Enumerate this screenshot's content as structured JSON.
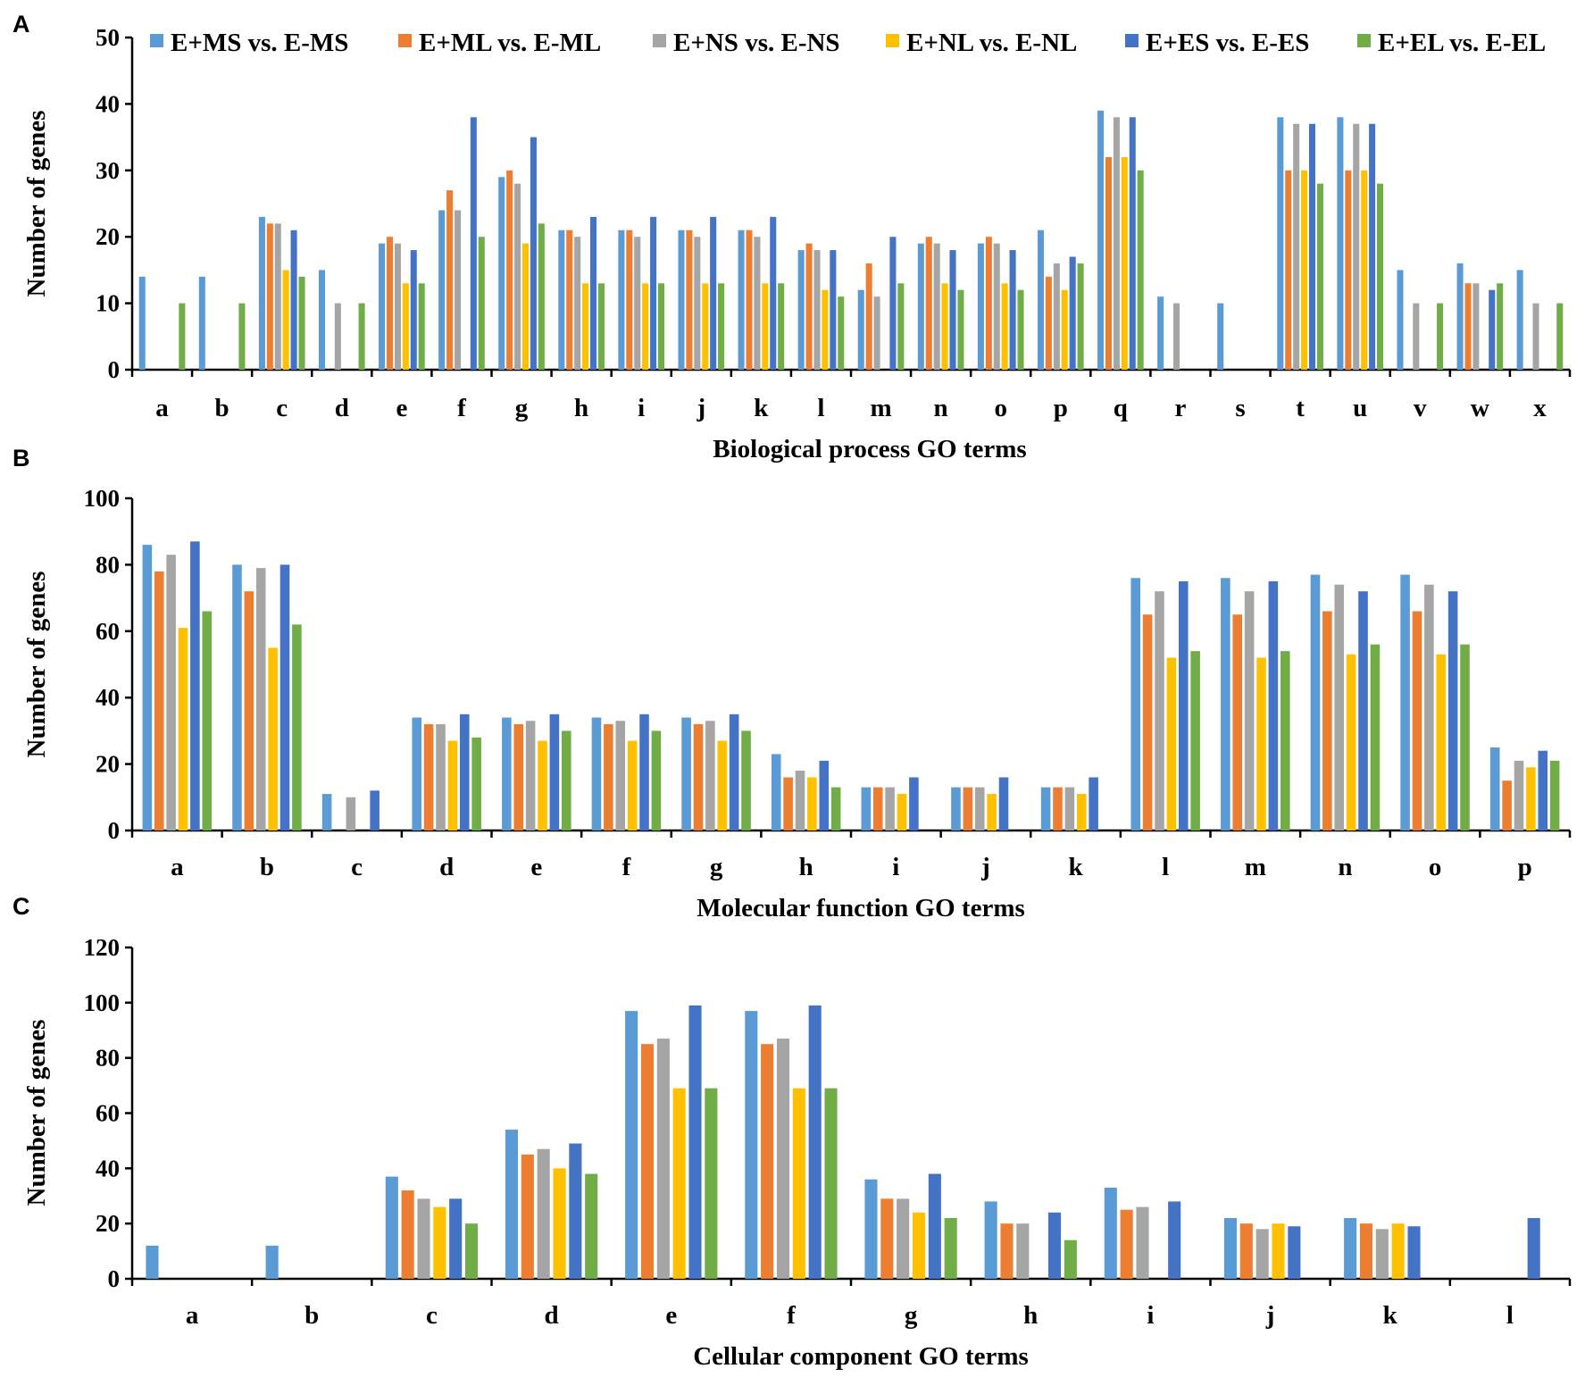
{
  "legend": [
    {
      "name": "E+MS vs. E-MS",
      "color": "#5B9BD5"
    },
    {
      "name": "E+ML vs. E-ML",
      "color": "#ED7D31"
    },
    {
      "name": "E+NS vs. E-NS",
      "color": "#A5A5A5"
    },
    {
      "name": "E+NL vs. E-NL",
      "color": "#FFC000"
    },
    {
      "name": "E+ES vs. E-ES",
      "color": "#4472C4"
    },
    {
      "name": "E+EL vs. E-EL",
      "color": "#70AD47"
    }
  ],
  "chart_data": [
    {
      "type": "bar",
      "panel": "A",
      "xlabel": "Biological process GO terms",
      "ylabel": "Number of genes",
      "ylim": [
        0,
        50
      ],
      "yticks": [
        0,
        10,
        20,
        30,
        40,
        50
      ],
      "categories": [
        "a",
        "b",
        "c",
        "d",
        "e",
        "f",
        "g",
        "h",
        "i",
        "j",
        "k",
        "l",
        "m",
        "n",
        "o",
        "p",
        "q",
        "r",
        "s",
        "t",
        "u",
        "v",
        "w",
        "x"
      ],
      "series": [
        {
          "name": "E+MS vs. E-MS",
          "values": [
            14,
            14,
            23,
            15,
            19,
            24,
            29,
            21,
            21,
            21,
            21,
            18,
            12,
            19,
            19,
            21,
            39,
            11,
            10,
            38,
            38,
            15,
            16,
            15
          ]
        },
        {
          "name": "E+ML vs. E-ML",
          "values": [
            0,
            0,
            22,
            0,
            20,
            27,
            30,
            21,
            21,
            21,
            21,
            19,
            16,
            20,
            20,
            14,
            32,
            0,
            0,
            30,
            30,
            0,
            13,
            0
          ]
        },
        {
          "name": "E+NS vs. E-NS",
          "values": [
            0,
            0,
            22,
            10,
            19,
            24,
            28,
            20,
            20,
            20,
            20,
            18,
            11,
            19,
            19,
            16,
            38,
            10,
            0,
            37,
            37,
            10,
            13,
            10
          ]
        },
        {
          "name": "E+NL vs. E-NL",
          "values": [
            0,
            0,
            15,
            0,
            13,
            0,
            19,
            13,
            13,
            13,
            13,
            12,
            0,
            13,
            13,
            12,
            32,
            0,
            0,
            30,
            30,
            0,
            0,
            0
          ]
        },
        {
          "name": "E+ES vs. E-ES",
          "values": [
            0,
            0,
            21,
            0,
            18,
            38,
            35,
            23,
            23,
            23,
            23,
            18,
            20,
            18,
            18,
            17,
            38,
            0,
            0,
            37,
            37,
            0,
            12,
            0
          ]
        },
        {
          "name": "E+EL vs. E-EL",
          "values": [
            10,
            10,
            14,
            10,
            13,
            20,
            22,
            13,
            13,
            13,
            13,
            11,
            13,
            12,
            12,
            16,
            30,
            0,
            0,
            28,
            28,
            10,
            13,
            10
          ]
        }
      ]
    },
    {
      "type": "bar",
      "panel": "B",
      "xlabel": "Molecular function GO terms",
      "ylabel": "Number of genes",
      "ylim": [
        0,
        100
      ],
      "yticks": [
        0,
        20,
        40,
        60,
        80,
        100
      ],
      "categories": [
        "a",
        "b",
        "c",
        "d",
        "e",
        "f",
        "g",
        "h",
        "i",
        "j",
        "k",
        "l",
        "m",
        "n",
        "o",
        "p"
      ],
      "series": [
        {
          "name": "E+MS vs. E-MS",
          "values": [
            86,
            80,
            11,
            34,
            34,
            34,
            34,
            23,
            13,
            13,
            13,
            76,
            76,
            77,
            77,
            25
          ]
        },
        {
          "name": "E+ML vs. E-ML",
          "values": [
            78,
            72,
            0,
            32,
            32,
            32,
            32,
            16,
            13,
            13,
            13,
            65,
            65,
            66,
            66,
            15
          ]
        },
        {
          "name": "E+NS vs. E-NS",
          "values": [
            83,
            79,
            10,
            32,
            33,
            33,
            33,
            18,
            13,
            13,
            13,
            72,
            72,
            74,
            74,
            21
          ]
        },
        {
          "name": "E+NL vs. E-NL",
          "values": [
            61,
            55,
            0,
            27,
            27,
            27,
            27,
            16,
            11,
            11,
            11,
            52,
            52,
            53,
            53,
            19
          ]
        },
        {
          "name": "E+ES vs. E-ES",
          "values": [
            87,
            80,
            12,
            35,
            35,
            35,
            35,
            21,
            16,
            16,
            16,
            75,
            75,
            72,
            72,
            24
          ]
        },
        {
          "name": "E+EL vs. E-EL",
          "values": [
            66,
            62,
            0,
            28,
            30,
            30,
            30,
            13,
            0,
            0,
            0,
            54,
            54,
            56,
            56,
            21
          ]
        }
      ]
    },
    {
      "type": "bar",
      "panel": "C",
      "xlabel": "Cellular component GO terms",
      "ylabel": "Number of genes",
      "ylim": [
        0,
        120
      ],
      "yticks": [
        0,
        20,
        40,
        60,
        80,
        100,
        120
      ],
      "categories": [
        "a",
        "b",
        "c",
        "d",
        "e",
        "f",
        "g",
        "h",
        "i",
        "j",
        "k",
        "l"
      ],
      "series": [
        {
          "name": "E+MS vs. E-MS",
          "values": [
            12,
            12,
            37,
            54,
            97,
            97,
            36,
            28,
            33,
            22,
            22,
            0
          ]
        },
        {
          "name": "E+ML vs. E-ML",
          "values": [
            0,
            0,
            32,
            45,
            85,
            85,
            29,
            20,
            25,
            20,
            20,
            0
          ]
        },
        {
          "name": "E+NS vs. E-NS",
          "values": [
            0,
            0,
            29,
            47,
            87,
            87,
            29,
            20,
            26,
            18,
            18,
            0
          ]
        },
        {
          "name": "E+NL vs. E-NL",
          "values": [
            0,
            0,
            26,
            40,
            69,
            69,
            24,
            0,
            0,
            20,
            20,
            0
          ]
        },
        {
          "name": "E+ES vs. E-ES",
          "values": [
            0,
            0,
            29,
            49,
            99,
            99,
            38,
            24,
            28,
            19,
            19,
            22
          ]
        },
        {
          "name": "E+EL vs. E-EL",
          "values": [
            0,
            0,
            20,
            38,
            69,
            69,
            22,
            14,
            0,
            0,
            0,
            0
          ]
        }
      ]
    }
  ]
}
